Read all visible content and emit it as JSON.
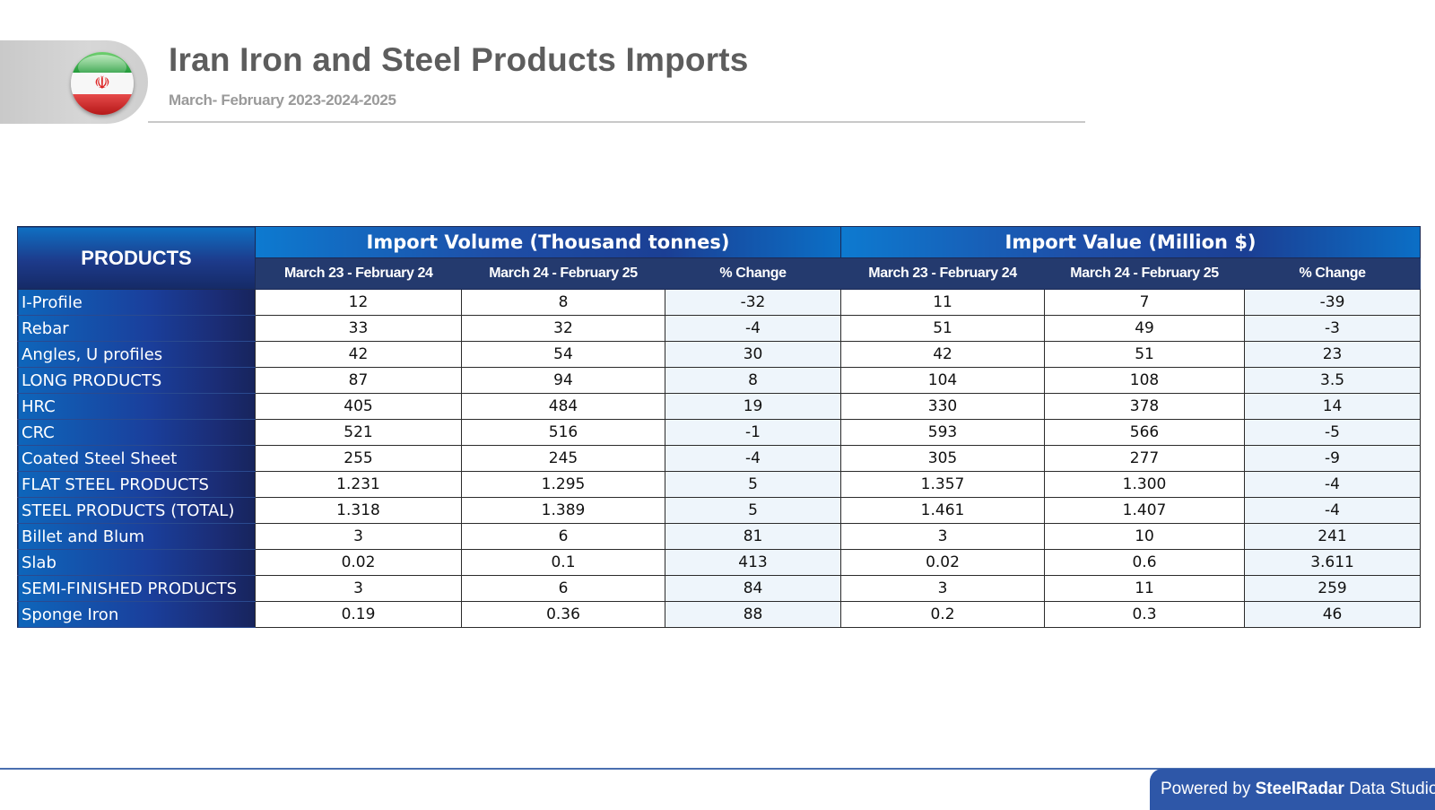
{
  "header": {
    "title": "Iran Iron and Steel Products Imports",
    "subtitle": "March- February 2023-2024-2025",
    "flag_icon": "iran-flag-icon"
  },
  "chart_data": {
    "type": "table",
    "columns": {
      "products_header": "PRODUCTS",
      "groups": [
        {
          "label": "Import Volume (Thousand tonnes)",
          "sub": [
            "March 23 - February 24",
            "March 24 - February 25",
            "% Change"
          ]
        },
        {
          "label": "Import Value (Million $)",
          "sub": [
            "March 23 - February 24",
            "March 24 - February 25",
            "% Change"
          ]
        }
      ]
    },
    "rows": [
      {
        "product": "I-Profile",
        "values": [
          "12",
          "8",
          "-32",
          "11",
          "7",
          "-39"
        ]
      },
      {
        "product": "Rebar",
        "values": [
          "33",
          "32",
          "-4",
          "51",
          "49",
          "-3"
        ]
      },
      {
        "product": "Angles, U profiles",
        "values": [
          "42",
          "54",
          "30",
          "42",
          "51",
          "23"
        ]
      },
      {
        "product": "LONG PRODUCTS",
        "values": [
          "87",
          "94",
          "8",
          "104",
          "108",
          "3.5"
        ]
      },
      {
        "product": "HRC",
        "values": [
          "405",
          "484",
          "19",
          "330",
          "378",
          "14"
        ]
      },
      {
        "product": "CRC",
        "values": [
          "521",
          "516",
          "-1",
          "593",
          "566",
          "-5"
        ]
      },
      {
        "product": "Coated Steel Sheet",
        "values": [
          "255",
          "245",
          "-4",
          "305",
          "277",
          "-9"
        ]
      },
      {
        "product": "FLAT STEEL PRODUCTS",
        "values": [
          "1.231",
          "1.295",
          "5",
          "1.357",
          "1.300",
          "-4"
        ]
      },
      {
        "product": "STEEL PRODUCTS (TOTAL)",
        "values": [
          "1.318",
          "1.389",
          "5",
          "1.461",
          "1.407",
          "-4"
        ]
      },
      {
        "product": "Billet and Blum",
        "values": [
          "3",
          "6",
          "81",
          "3",
          "10",
          "241"
        ]
      },
      {
        "product": "Slab",
        "values": [
          "0.02",
          "0.1",
          "413",
          "0.02",
          "0.6",
          "3.611"
        ]
      },
      {
        "product": "SEMI-FINISHED PRODUCTS",
        "values": [
          "3",
          "6",
          "84",
          "3",
          "11",
          "259"
        ]
      },
      {
        "product": "Sponge Iron",
        "values": [
          "0.19",
          "0.36",
          "88",
          "0.2",
          "0.3",
          "46"
        ]
      }
    ]
  },
  "footer": {
    "prefix": "Powered by",
    "brand": "SteelRadar",
    "suffix": "Data Studio"
  },
  "colors": {
    "header_blue": "#1e4fa8",
    "subheader_navy": "#243a6e",
    "pct_column_bg": "#eef5fb",
    "footer_blue": "#2e57a8",
    "title_gray": "#5d5d5d"
  }
}
